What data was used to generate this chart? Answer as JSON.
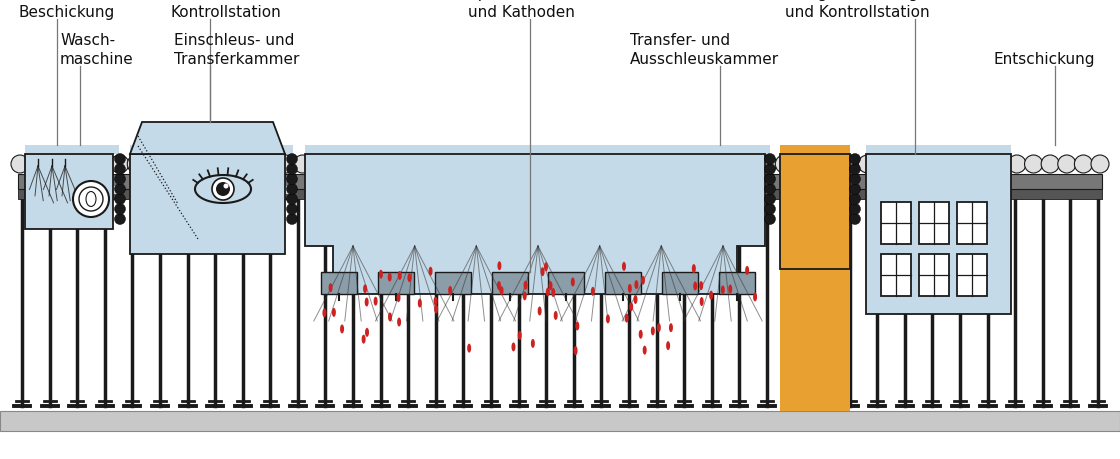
{
  "bg_color": "#ffffff",
  "light_blue": "#c5dae8",
  "mid_gray": "#8a9da8",
  "dark_gray": "#1a1a1a",
  "line_gray": "#666666",
  "orange": "#e8a030",
  "red": "#cc2222",
  "roller_fill": "#e0e0e0",
  "roller_band": "#888888",
  "slab_color": "#c8c8c8",
  "support_color": "#aaaaaa",
  "labels": {
    "beschickung": "Beschickung",
    "kontrollstation": "Kontrollstation",
    "waschmaschine": "Wasch-\nmaschine",
    "einschleus": "Einschleus- und\nTransferkammer",
    "sputter": "Sputterkammern\nund Kathoden",
    "transfer_aus": "Transfer- und\nAusschleuskammer",
    "anlage": "Anlagebedienungsraum\nund Kontrollstation",
    "entschickung": "Entschickung"
  },
  "fig_w": 11.2,
  "fig_h": 4.6,
  "dpi": 100
}
